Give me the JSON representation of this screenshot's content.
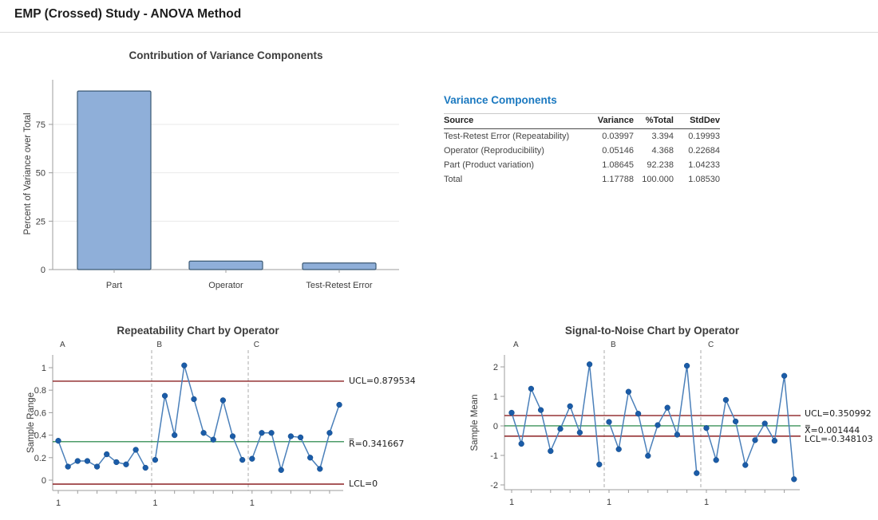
{
  "page": {
    "title": "EMP (Crossed) Study - ANOVA Method"
  },
  "variance_table": {
    "title": "Variance Components",
    "columns": [
      "Source",
      "Variance",
      "%Total",
      "StdDev"
    ],
    "rows": [
      [
        "Test-Retest Error (Repeatability)",
        "0.03997",
        "3.394",
        "0.19993"
      ],
      [
        "Operator (Reproducibility)",
        "0.05146",
        "4.368",
        "0.22684"
      ],
      [
        "Part (Product variation)",
        "1.08645",
        "92.238",
        "1.04233"
      ],
      [
        "Total",
        "1.17788",
        "100.000",
        "1.08530"
      ]
    ]
  },
  "chart_data": [
    {
      "type": "bar",
      "title": "Contribution of Variance Components",
      "ylabel": "Percent of Variance over Total",
      "categories": [
        "Part",
        "Operator",
        "Test-Retest Error"
      ],
      "values": [
        92.238,
        4.368,
        3.394
      ],
      "yticks": [
        0,
        25,
        50,
        75
      ],
      "ylim": [
        0,
        98
      ],
      "grid": true,
      "legend": "none"
    },
    {
      "type": "line",
      "title": "Repeatability Chart by Operator",
      "ylabel": "Sample Range",
      "groups": [
        "A",
        "B",
        "C"
      ],
      "group_start_tick_label": "1",
      "series": [
        {
          "name": "A",
          "values": [
            0.35,
            0.12,
            0.17,
            0.17,
            0.12,
            0.23,
            0.16,
            0.14,
            0.27,
            0.11
          ]
        },
        {
          "name": "B",
          "values": [
            0.18,
            0.75,
            0.4,
            1.02,
            0.72,
            0.42,
            0.36,
            0.71,
            0.39,
            0.18
          ]
        },
        {
          "name": "C",
          "values": [
            0.19,
            0.42,
            0.42,
            0.09,
            0.39,
            0.38,
            0.2,
            0.1,
            0.42,
            0.67
          ]
        }
      ],
      "yticks": [
        0,
        0.2,
        0.4,
        0.6,
        0.8,
        1
      ],
      "ylim": [
        -0.09,
        1.08
      ],
      "ucl": {
        "label": "UCL=0.879534",
        "value": 0.879534
      },
      "center_line": {
        "label": "R̅=0.341667",
        "value": 0.341667
      },
      "lcl": {
        "label": "LCL=0",
        "value": 0
      },
      "legend": "none"
    },
    {
      "type": "line",
      "title": "Signal-to-Noise Chart by Operator",
      "ylabel": "Sample Mean",
      "groups": [
        "A",
        "B",
        "C"
      ],
      "group_start_tick_label": "1",
      "series": [
        {
          "name": "A",
          "values": [
            0.4467,
            -0.6067,
            1.26,
            0.5367,
            -0.8533,
            -0.1,
            0.6667,
            -0.2267,
            2.0867,
            -1.3067
          ]
        },
        {
          "name": "B",
          "values": [
            0.1333,
            -0.79,
            1.1567,
            0.4133,
            -1.0133,
            0.0267,
            0.6167,
            -0.2967,
            2.0367,
            -1.6
          ]
        },
        {
          "name": "C",
          "values": [
            -0.0733,
            -1.1567,
            0.88,
            0.15,
            -1.3267,
            -0.4833,
            0.08,
            -0.5033,
            1.6967,
            -1.8067
          ]
        }
      ],
      "yticks": [
        -2,
        -1,
        0,
        1,
        2
      ],
      "ylim": [
        -2.3,
        2.3
      ],
      "ucl": {
        "label": "UCL=0.350992",
        "value": 0.350992
      },
      "center_line": {
        "label": "X̿=0.001444",
        "value": 0.001444
      },
      "lcl": {
        "label": "LCL=-0.348103",
        "value": -0.348103
      },
      "legend": "none"
    }
  ],
  "colors": {
    "heading_blue": "#1b79c0",
    "bar_fill": "#8fafd9",
    "bar_border": "#3c5a74",
    "series_line": "#4b80ba",
    "marker": "#1b5ca8",
    "marker_edge": "#134a85",
    "limit_line": "#8c2023",
    "center_line": "#107a36",
    "grid": "#e9e9e9",
    "axis": "#9c9c9c",
    "text_dark": "#3c3c3c"
  }
}
